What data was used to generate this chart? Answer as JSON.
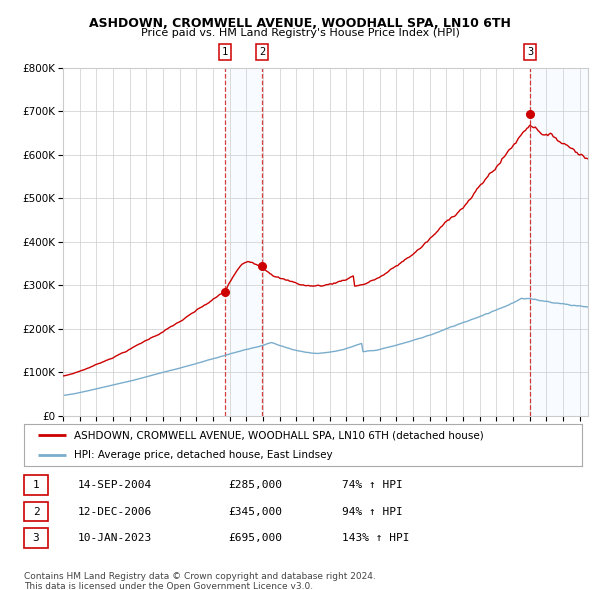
{
  "title": "ASHDOWN, CROMWELL AVENUE, WOODHALL SPA, LN10 6TH",
  "subtitle": "Price paid vs. HM Land Registry's House Price Index (HPI)",
  "legend_line1": "ASHDOWN, CROMWELL AVENUE, WOODHALL SPA, LN10 6TH (detached house)",
  "legend_line2": "HPI: Average price, detached house, East Lindsey",
  "red_color": "#cc0000",
  "blue_color": "#7aadcc",
  "sale_prices": [
    285000,
    345000,
    695000
  ],
  "sale_decimal": [
    2004.708,
    2006.958,
    2023.033
  ],
  "sale_labels": [
    "1",
    "2",
    "3"
  ],
  "table_data": [
    [
      "1",
      "14-SEP-2004",
      "£285,000",
      "74% ↑ HPI"
    ],
    [
      "2",
      "12-DEC-2006",
      "£345,000",
      "94% ↑ HPI"
    ],
    [
      "3",
      "10-JAN-2023",
      "£695,000",
      "143% ↑ HPI"
    ]
  ],
  "footnote1": "Contains HM Land Registry data © Crown copyright and database right 2024.",
  "footnote2": "This data is licensed under the Open Government Licence v3.0.",
  "ylim": [
    0,
    800000
  ],
  "yticks": [
    0,
    100000,
    200000,
    300000,
    400000,
    500000,
    600000,
    700000,
    800000
  ],
  "ytick_labels": [
    "£0",
    "£100K",
    "£200K",
    "£300K",
    "£400K",
    "£500K",
    "£600K",
    "£700K",
    "£800K"
  ],
  "xlim": [
    1995,
    2026.5
  ],
  "background_color": "#ffffff",
  "grid_color": "#cccccc",
  "shade_color": "#ddeeff"
}
